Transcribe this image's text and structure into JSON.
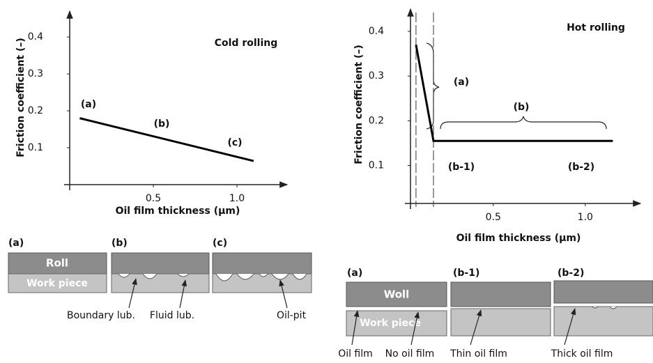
{
  "chart_data": [
    {
      "type": "line",
      "title": "Cold rolling",
      "y_label": "Friction coefficient (–)",
      "x_label": "Oil film thickness (μm)",
      "x": [
        0.06,
        1.1
      ],
      "values": [
        0.18,
        0.064
      ],
      "color": "#000000",
      "xlim": [
        0,
        1.3
      ],
      "ylim": [
        0,
        0.47
      ],
      "xticks": [
        0.5,
        {
          "value": 1,
          "label": "1.0"
        }
      ],
      "yticks": [
        0.1,
        0.2,
        0.3,
        0.4
      ],
      "annotations": [
        "(a)",
        "(b)",
        "(c)"
      ]
    },
    {
      "type": "line",
      "title": "Hot rolling",
      "y_label": "Friction coefficient (–)",
      "x_label": "Oil film thickness (μm)",
      "x": [
        0.08,
        0.175,
        1.15
      ],
      "values": [
        0.37,
        0.155,
        0.155
      ],
      "color": "#000000",
      "xlim": [
        0.05,
        1.3
      ],
      "ylim": [
        0.015,
        0.45
      ],
      "xticks": [
        0.5,
        {
          "value": 1,
          "label": "1.0"
        }
      ],
      "yticks": [
        0.1,
        0.2,
        0.3,
        0.4
      ],
      "annotations": [
        "(a)",
        "(b)",
        "(b-1)",
        "(b-2)"
      ]
    }
  ],
  "cold_diagram": {
    "panel_labels": [
      "(a)",
      "(b)",
      "(c)"
    ],
    "roll": "Roll",
    "work_piece": "Work piece",
    "callouts": [
      "Boundary lub.",
      "Fluid lub.",
      "Oil-pit"
    ]
  },
  "hot_diagram": {
    "panel_labels": [
      "(a)",
      "(b-1)",
      "(b-2)"
    ],
    "roll": "Woll",
    "work_piece": "Work piece",
    "callouts": [
      "Oil film",
      "No oil film",
      "Thin oil film",
      "Thick oil film"
    ]
  }
}
